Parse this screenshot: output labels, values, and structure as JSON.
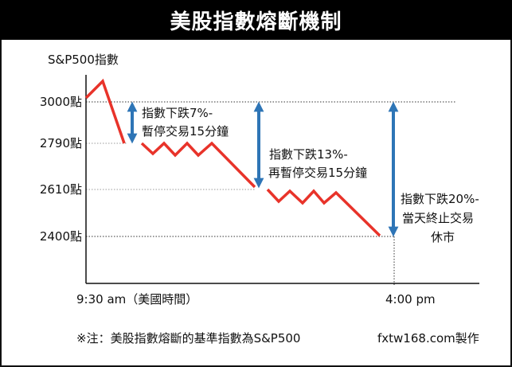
{
  "title": "美股指數熔斷機制",
  "y_axis_label": "S&P500指數",
  "y_levels": [
    {
      "label": "3000點",
      "value": 3000
    },
    {
      "label": "2790點",
      "value": 2790
    },
    {
      "label": "2610點",
      "value": 2610
    },
    {
      "label": "2400點",
      "value": 2400
    }
  ],
  "x_labels": {
    "start": "9:30 am（美國時間）",
    "end": "4:00 pm"
  },
  "annotations": [
    {
      "line1": "指數下跌7%-",
      "line2": "暫停交易15分鐘"
    },
    {
      "line1": "指數下跌13%-",
      "line2": "再暫停交易15分鐘"
    },
    {
      "line1": "指數下跌20%-",
      "line2": "當天終止交易",
      "line3": "休市"
    }
  ],
  "footnote": "※注：美股指數熔斷的基準指數為S&P500",
  "credit": "fxtw168.com製作",
  "colors": {
    "line": "#e8332a",
    "arrow": "#2e75b6",
    "title_bg": "#000000"
  }
}
